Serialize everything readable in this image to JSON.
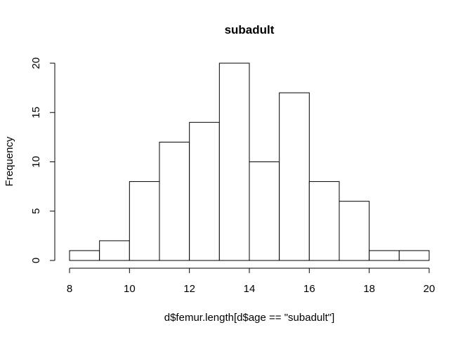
{
  "chart_data": {
    "type": "bar",
    "title": "subadult",
    "xlabel": "d$femur.length[d$age == \"subadult\"]",
    "ylabel": "Frequency",
    "bins": [
      {
        "start": 8,
        "end": 9,
        "count": 1
      },
      {
        "start": 9,
        "end": 10,
        "count": 2
      },
      {
        "start": 10,
        "end": 11,
        "count": 8
      },
      {
        "start": 11,
        "end": 12,
        "count": 12
      },
      {
        "start": 12,
        "end": 13,
        "count": 14
      },
      {
        "start": 13,
        "end": 14,
        "count": 20
      },
      {
        "start": 14,
        "end": 15,
        "count": 10
      },
      {
        "start": 15,
        "end": 16,
        "count": 17
      },
      {
        "start": 16,
        "end": 17,
        "count": 8
      },
      {
        "start": 17,
        "end": 18,
        "count": 6
      },
      {
        "start": 18,
        "end": 19,
        "count": 1
      },
      {
        "start": 19,
        "end": 20,
        "count": 1
      }
    ],
    "xlim": [
      8,
      20
    ],
    "ylim": [
      0,
      20
    ],
    "x_ticks": [
      8,
      10,
      12,
      14,
      16,
      18,
      20
    ],
    "y_ticks": [
      0,
      5,
      10,
      15,
      20
    ],
    "grid": false,
    "colors": {
      "bar_fill": "#ffffff",
      "bar_stroke": "#000000",
      "axis": "#000000"
    }
  }
}
